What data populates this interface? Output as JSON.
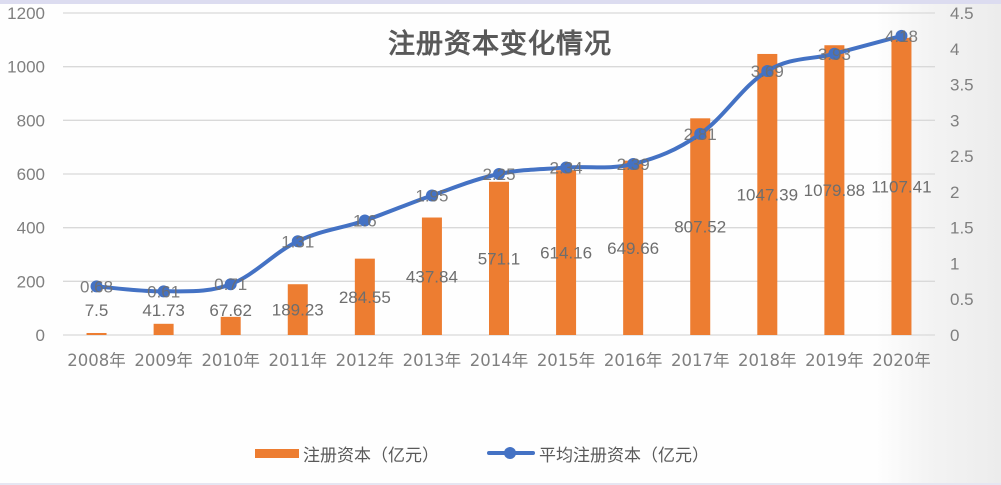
{
  "title": "注册资本变化情况",
  "colors": {
    "bar": "#ED7D31",
    "line": "#4472C4",
    "grid": "#D9D9D9",
    "axis_text": "#7F7F7F",
    "label_text": "#6E6E6E"
  },
  "legend": [
    {
      "label": "注册资本（亿元）",
      "type": "bar"
    },
    {
      "label": "平均注册资本（亿元）",
      "type": "line"
    }
  ],
  "chart_data": {
    "type": "bar+line",
    "title": "注册资本变化情况",
    "categories": [
      "2008年",
      "2009年",
      "2010年",
      "2011年",
      "2012年",
      "2013年",
      "2014年",
      "2015年",
      "2016年",
      "2017年",
      "2018年",
      "2019年",
      "2020年"
    ],
    "series": [
      {
        "name": "注册资本（亿元）",
        "type": "bar",
        "axis": "left",
        "values": [
          7.5,
          41.73,
          67.62,
          189.23,
          284.55,
          437.84,
          571.1,
          614.16,
          649.66,
          807.52,
          1047.39,
          1079.88,
          1107.41
        ],
        "labels": [
          "7.5",
          "41.73",
          "67.62",
          "189.23",
          "284.55",
          "437.84",
          "571.1",
          "614.16",
          "649.66",
          "807.52",
          "1047.39",
          "1079.88",
          "1107.41"
        ]
      },
      {
        "name": "平均注册资本（亿元）",
        "type": "line",
        "axis": "right",
        "markers": true,
        "smooth": true,
        "values": [
          0.68,
          0.61,
          0.71,
          1.31,
          1.6,
          1.95,
          2.25,
          2.34,
          2.39,
          2.81,
          3.69,
          3.93,
          4.18
        ],
        "labels": [
          "0.68",
          "0.61",
          "0.71",
          "1.31",
          "1.6",
          "1.95",
          "2.25",
          "2.34",
          "2.39",
          "2.81",
          "3.69",
          "3.93",
          "4.18"
        ]
      }
    ],
    "y_left": {
      "min": 0,
      "max": 1200,
      "step": 200,
      "ticks": [
        "0",
        "200",
        "400",
        "600",
        "800",
        "1000",
        "1200"
      ]
    },
    "y_right": {
      "min": 0,
      "max": 4.5,
      "step": 0.5,
      "ticks": [
        "0",
        "0.5",
        "1",
        "1.5",
        "2",
        "2.5",
        "3",
        "3.5",
        "4",
        "4.5"
      ]
    },
    "xlabel": "",
    "ylabel": "",
    "grid": true,
    "legend_position": "bottom"
  }
}
